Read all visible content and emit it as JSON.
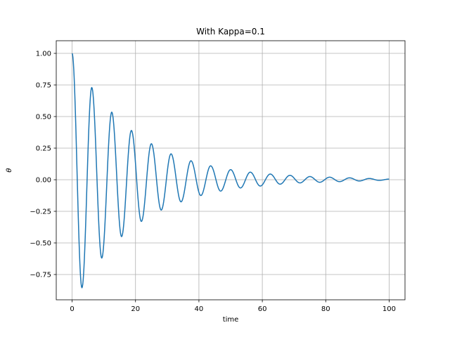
{
  "chart_data": {
    "type": "line",
    "title": "With Kappa=0.1",
    "xlabel": "time",
    "ylabel": "θ",
    "xlim": [
      -5,
      105
    ],
    "ylim": [
      -0.95,
      1.1
    ],
    "xticks": [
      0,
      20,
      40,
      60,
      80,
      100
    ],
    "xtick_labels": [
      "0",
      "20",
      "40",
      "60",
      "80",
      "100"
    ],
    "yticks": [
      -0.75,
      -0.5,
      -0.25,
      0.0,
      0.25,
      0.5,
      0.75,
      1.0
    ],
    "ytick_labels": [
      "−0.75",
      "−0.50",
      "−0.25",
      "0.00",
      "0.25",
      "0.50",
      "0.75",
      "1.00"
    ],
    "grid": true,
    "line_color": "#1f77b4",
    "grid_color": "#b0b0b0",
    "series": [
      {
        "x": [
          0,
          3.1,
          6.2,
          9.35,
          12.5,
          15.6,
          18.7,
          21.85,
          25.0,
          28.1,
          31.2,
          34.35,
          37.5,
          40.6,
          43.7,
          46.85,
          50.0,
          53.1,
          56.2,
          59.35,
          62.5,
          65.6,
          68.7,
          71.85,
          75.0,
          78.1,
          81.2,
          84.35,
          87.5,
          90.6,
          93.7,
          96.85,
          100.0
        ],
        "y": [
          1.0,
          -0.855,
          0.73,
          -0.62,
          0.535,
          -0.45,
          0.39,
          -0.33,
          0.285,
          -0.24,
          0.205,
          -0.175,
          0.15,
          -0.125,
          0.11,
          -0.09,
          0.08,
          -0.065,
          0.06,
          -0.05,
          0.045,
          -0.035,
          0.035,
          -0.025,
          0.025,
          -0.02,
          0.02,
          -0.015,
          0.015,
          -0.01,
          0.01,
          -0.005,
          0.005
        ]
      }
    ]
  }
}
